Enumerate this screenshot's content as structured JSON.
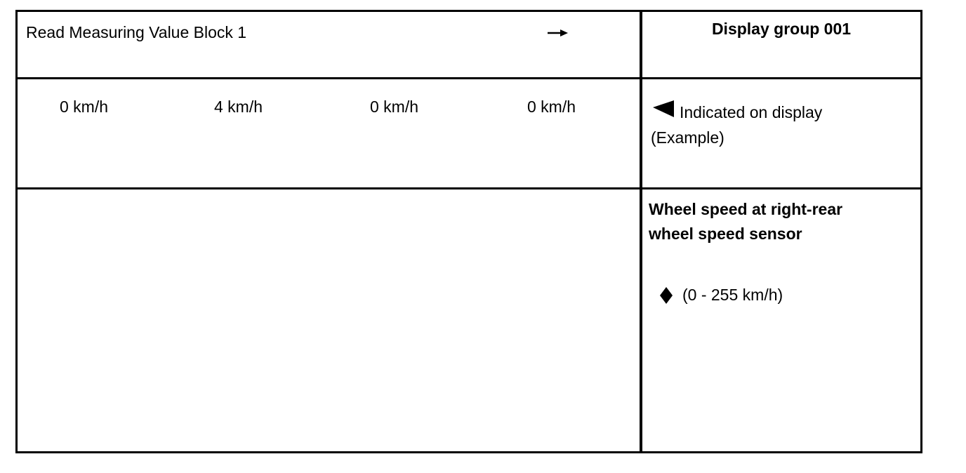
{
  "header": {
    "title": "Read Measuring Value Block 1",
    "arrow_icon": "right-arrow-icon",
    "display_group": "Display group 001"
  },
  "values": [
    "0 km/h",
    "4 km/h",
    "0 km/h",
    "0 km/h"
  ],
  "note": {
    "icon": "left-triangle-icon",
    "line1": "Indicated on display",
    "line2": "(Example)"
  },
  "description": {
    "line1": "Wheel speed at right-rear",
    "line2": "wheel speed sensor",
    "bullet_icon": "diamond-icon",
    "range": "(0 - 255 km/h)"
  }
}
